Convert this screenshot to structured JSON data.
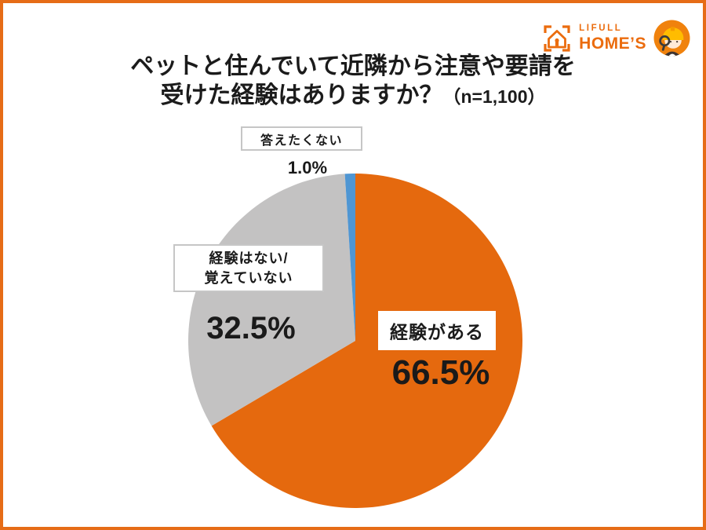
{
  "logo": {
    "brand_top": "LIFULL",
    "brand_bottom": "HOME’S",
    "color": "#EB6C0E",
    "house_icon": "house-in-brackets-icon",
    "mascot_icon": "mascot-with-magnifier-icon"
  },
  "title": {
    "line1": "ペットと住んでいて近隣から注意や要請を",
    "line2": "受けた経験はありますか？",
    "sample": "（n=1,100）"
  },
  "frame_color": "#E66C17",
  "chart_data": {
    "type": "pie",
    "title": "ペットと住んでいて近隣から注意や要請を受けた経験はありますか？",
    "sample_size": "n=1,100",
    "direction": "clockwise",
    "start_angle": "12-oclock",
    "radius_px": 213,
    "slices": [
      {
        "label": "経験がある",
        "value": 66.5,
        "display": "66.5%",
        "color": "#E5690E"
      },
      {
        "label": "経験はない/覚えていない",
        "label_line1": "経験はない/",
        "label_line2": "覚えていない",
        "value": 32.5,
        "display": "32.5%",
        "color": "#C3C2C2"
      },
      {
        "label": "答えたくない",
        "value": 1.0,
        "display": "1.0%",
        "color": "#4F96D3"
      }
    ]
  }
}
